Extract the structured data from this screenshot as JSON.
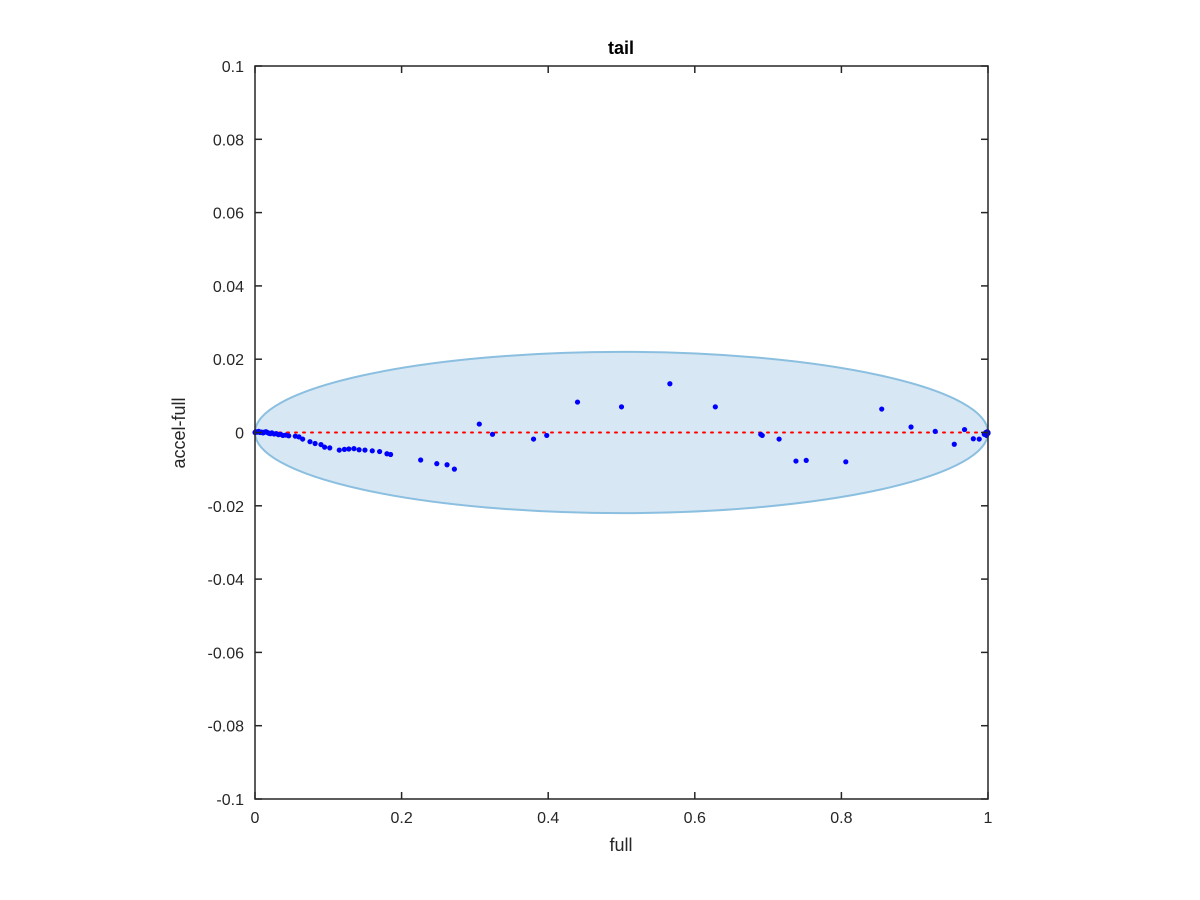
{
  "chart_data": {
    "type": "scatter",
    "title": "tail",
    "xlabel": "full",
    "ylabel": "accel-full",
    "xlim": [
      0,
      1
    ],
    "ylim": [
      -0.1,
      0.1
    ],
    "x_ticks": [
      0,
      0.2,
      0.4,
      0.6,
      0.8,
      1
    ],
    "x_tick_labels": [
      "0",
      "0.2",
      "0.4",
      "0.6",
      "0.8",
      "1"
    ],
    "y_ticks": [
      0.1,
      0.08,
      0.06,
      0.04,
      0.02,
      0,
      -0.02,
      -0.04,
      -0.06,
      -0.08,
      -0.1
    ],
    "y_tick_labels": [
      "0.1",
      "0.08",
      "0.06",
      "0.04",
      "0.02",
      "0",
      "-0.02",
      "-0.04",
      "-0.06",
      "-0.08",
      "-0.1"
    ],
    "grid": false,
    "points": [
      [
        0.0,
        0.0
      ],
      [
        0.001,
        0.0002
      ],
      [
        0.003,
        0.0001
      ],
      [
        0.005,
        0.0003
      ],
      [
        0.007,
        0.0
      ],
      [
        0.009,
        0.0001
      ],
      [
        0.011,
        -0.0001
      ],
      [
        0.013,
        0.0001
      ],
      [
        0.015,
        0.0002
      ],
      [
        0.017,
        0.0
      ],
      [
        0.019,
        -0.0002
      ],
      [
        0.021,
        -0.0003
      ],
      [
        0.023,
        -0.0001
      ],
      [
        0.026,
        -0.0004
      ],
      [
        0.029,
        -0.0003
      ],
      [
        0.032,
        -0.0006
      ],
      [
        0.035,
        -0.0005
      ],
      [
        0.038,
        -0.0008
      ],
      [
        0.042,
        -0.0007
      ],
      [
        0.046,
        -0.0009
      ],
      [
        0.055,
        -0.001
      ],
      [
        0.06,
        -0.0012
      ],
      [
        0.065,
        -0.0018
      ],
      [
        0.075,
        -0.0025
      ],
      [
        0.082,
        -0.003
      ],
      [
        0.09,
        -0.0033
      ],
      [
        0.095,
        -0.004
      ],
      [
        0.102,
        -0.0042
      ],
      [
        0.115,
        -0.0048
      ],
      [
        0.122,
        -0.0046
      ],
      [
        0.128,
        -0.0045
      ],
      [
        0.135,
        -0.0044
      ],
      [
        0.142,
        -0.0047
      ],
      [
        0.15,
        -0.0048
      ],
      [
        0.16,
        -0.005
      ],
      [
        0.17,
        -0.0052
      ],
      [
        0.18,
        -0.0058
      ],
      [
        0.185,
        -0.006
      ],
      [
        0.226,
        -0.0075
      ],
      [
        0.248,
        -0.0085
      ],
      [
        0.262,
        -0.0088
      ],
      [
        0.272,
        -0.01
      ],
      [
        0.306,
        0.0023
      ],
      [
        0.324,
        -0.0005
      ],
      [
        0.38,
        -0.0018
      ],
      [
        0.398,
        -0.0008
      ],
      [
        0.44,
        0.0083
      ],
      [
        0.5,
        0.007
      ],
      [
        0.566,
        0.0133
      ],
      [
        0.628,
        0.007
      ],
      [
        0.69,
        -0.0005
      ],
      [
        0.692,
        -0.0008
      ],
      [
        0.715,
        -0.0018
      ],
      [
        0.738,
        -0.0078
      ],
      [
        0.752,
        -0.0076
      ],
      [
        0.806,
        -0.008
      ],
      [
        0.855,
        0.0064
      ],
      [
        0.895,
        0.0015
      ],
      [
        0.928,
        0.0003
      ],
      [
        0.954,
        -0.0032
      ],
      [
        0.968,
        0.0008
      ],
      [
        0.98,
        -0.0017
      ],
      [
        0.988,
        -0.0018
      ],
      [
        0.995,
        -0.0005
      ],
      [
        0.997,
        0.0
      ],
      [
        0.998,
        -0.0008
      ],
      [
        0.999,
        0.0002
      ],
      [
        1.0,
        -0.0002
      ],
      [
        1.0,
        0.0
      ]
    ],
    "ellipse": {
      "center_x": 0.5,
      "center_y": 0.0,
      "radius_x": 0.5,
      "radius_y": 0.022
    },
    "reference_line_y": 0,
    "colors": {
      "points": "#0000ff",
      "ellipse_fill": "#d8e7f4",
      "ellipse_stroke": "#8bbfe0",
      "reference_line": "#ff0000",
      "axes": "#262626"
    }
  }
}
